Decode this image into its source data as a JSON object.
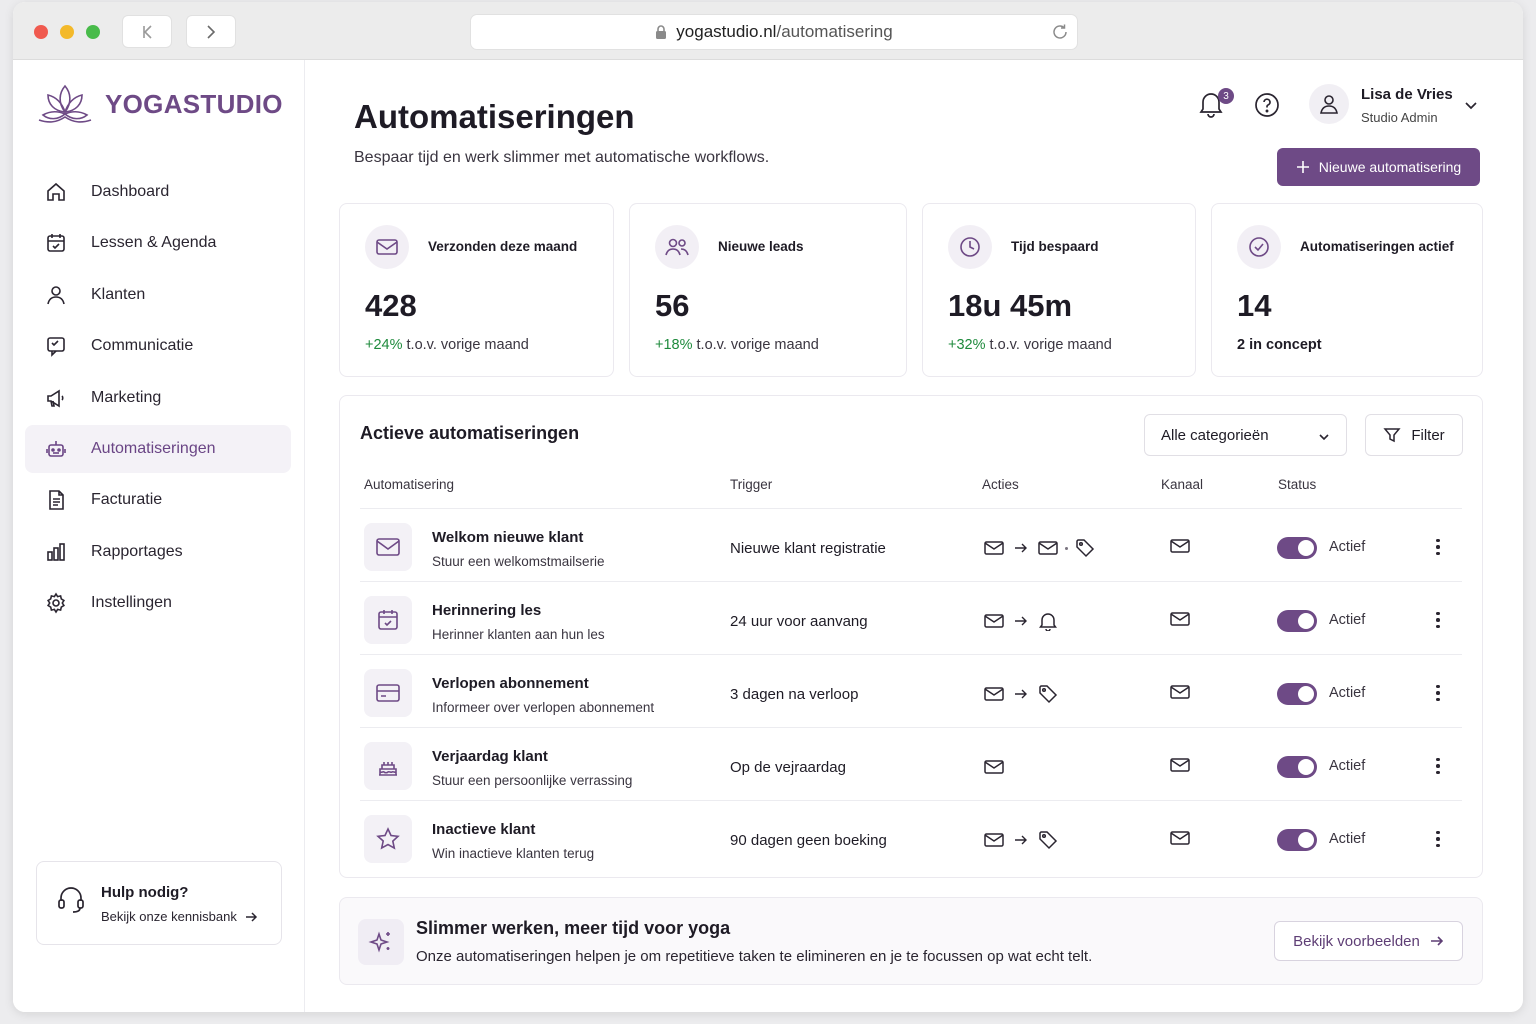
{
  "browser": {
    "url_domain": "yogastudio.nl",
    "url_path": "/automatisering"
  },
  "brand": {
    "name": "YOGASTUDIO",
    "color": "#6e4a86"
  },
  "sidebar": {
    "items": [
      {
        "label": "Dashboard",
        "icon": "home-icon",
        "active": false
      },
      {
        "label": "Lessen & Agenda",
        "icon": "calendar-icon",
        "active": false
      },
      {
        "label": "Klanten",
        "icon": "user-icon",
        "active": false
      },
      {
        "label": "Communicatie",
        "icon": "chat-icon",
        "active": false
      },
      {
        "label": "Marketing",
        "icon": "megaphone-icon",
        "active": false
      },
      {
        "label": "Automatiseringen",
        "icon": "robot-icon",
        "active": true
      },
      {
        "label": "Facturatie",
        "icon": "invoice-icon",
        "active": false
      },
      {
        "label": "Rapportages",
        "icon": "bar-chart-icon",
        "active": false
      },
      {
        "label": "Instellingen",
        "icon": "gear-icon",
        "active": false
      }
    ],
    "help": {
      "title": "Hulp nodig?",
      "link": "Bekijk onze kennisbank"
    }
  },
  "header": {
    "title": "Automatiseringen",
    "subtitle": "Bespaar tijd en werk slimmer met automatische workflows.",
    "notification_count": "3",
    "user": {
      "name": "Lisa de Vries",
      "role": "Studio Admin"
    },
    "new_button": "Nieuwe automatisering"
  },
  "stats": [
    {
      "label": "Verzonden deze maand",
      "value": "428",
      "change": "+24%",
      "suffix": "t.o.v. vorige maand",
      "icon": "mail-icon"
    },
    {
      "label": "Nieuwe leads",
      "value": "56",
      "change": "+18%",
      "suffix": "t.o.v. vorige maand",
      "icon": "users-icon"
    },
    {
      "label": "Tijd bespaard",
      "value": "18u 45m",
      "change": "+32%",
      "suffix": "t.o.v. vorige maand",
      "icon": "clock-icon"
    },
    {
      "label": "Automatiseringen actief",
      "value": "14",
      "footer": "2 in concept",
      "icon": "check-circle-icon"
    }
  ],
  "table": {
    "title": "Actieve automatiseringen",
    "category_select": "Alle categorieën",
    "filter_label": "Filter",
    "columns": [
      "Automatisering",
      "Trigger",
      "Acties",
      "Kanaal",
      "Status"
    ],
    "rows": [
      {
        "name": "Welkom nieuwe klant",
        "description": "Stuur een welkomstmailserie",
        "trigger": "Nieuwe klant registratie",
        "status": "Actief",
        "icon": "mail-icon",
        "actions": [
          "mail-icon",
          "arrow",
          "mail-icon",
          "dot",
          "tag-icon"
        ]
      },
      {
        "name": "Herinnering les",
        "description": "Herinner klanten aan hun les",
        "trigger": "24 uur voor aanvang",
        "status": "Actief",
        "icon": "calendar-icon",
        "actions": [
          "mail-icon",
          "arrow",
          "bell-icon"
        ]
      },
      {
        "name": "Verlopen abonnement",
        "description": "Informeer over verlopen abonnement",
        "trigger": "3 dagen na verloop",
        "status": "Actief",
        "icon": "card-icon",
        "actions": [
          "mail-icon",
          "arrow",
          "tag-icon"
        ]
      },
      {
        "name": "Verjaardag klant",
        "description": "Stuur een persoonlijke verrassing",
        "trigger": "Op de vejraardag",
        "status": "Actief",
        "icon": "cake-icon",
        "actions": [
          "mail-icon"
        ]
      },
      {
        "name": "Inactieve klant",
        "description": "Win inactieve klanten terug",
        "trigger": "90 dagen geen boeking",
        "status": "Actief",
        "icon": "star-icon",
        "actions": [
          "mail-icon",
          "arrow",
          "tag-icon"
        ]
      }
    ]
  },
  "banner": {
    "title": "Slimmer werken, meer tijd voor yoga",
    "subtitle": "Onze automatiseringen helpen je om repetitieve taken te elimineren en je te focussen op wat echt telt.",
    "button": "Bekijk voorbeelden"
  }
}
